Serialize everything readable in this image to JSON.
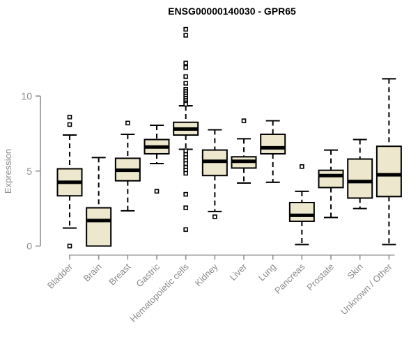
{
  "title": "ENSG00000140030 - GPR65",
  "chart_data": {
    "type": "boxplot",
    "title": "ENSG00000140030 - GPR65",
    "ylabel": "Expression",
    "xlabel": "",
    "yticks": [
      0,
      5,
      10
    ],
    "ylim": [
      0,
      10
    ],
    "grid": false,
    "legend": "none",
    "categories": [
      "Bladder",
      "Brain",
      "Breast",
      "Gastric",
      "Hematopoietic cells",
      "Kidney",
      "Liver",
      "Lung",
      "Pancreas",
      "Prostate",
      "Skin",
      "Unknown / Other"
    ],
    "series": [
      {
        "name": "Bladder",
        "whisker_low": 1.2,
        "q1": 3.35,
        "median": 4.25,
        "q3": 5.15,
        "whisker_high": 7.4,
        "outliers": [
          8.6,
          8.1,
          0.0
        ]
      },
      {
        "name": "Brain",
        "whisker_low": 0.0,
        "q1": 0.0,
        "median": 1.7,
        "q3": 2.55,
        "whisker_high": 5.9,
        "outliers": []
      },
      {
        "name": "Breast",
        "whisker_low": 2.35,
        "q1": 4.35,
        "median": 5.05,
        "q3": 5.85,
        "whisker_high": 7.45,
        "outliers": [
          8.2
        ]
      },
      {
        "name": "Gastric",
        "whisker_low": 5.5,
        "q1": 6.15,
        "median": 6.6,
        "q3": 7.1,
        "whisker_high": 8.05,
        "outliers": [
          3.65
        ]
      },
      {
        "name": "Hematopoietic cells",
        "whisker_low": 6.45,
        "q1": 7.4,
        "median": 7.8,
        "q3": 8.25,
        "whisker_high": 9.35,
        "outliers": [
          14.45,
          14.05,
          12.2,
          11.9,
          11.3,
          10.85,
          10.45,
          10.3,
          10.15,
          10.0,
          9.85,
          9.7,
          9.55,
          9.45,
          6.35,
          6.1,
          5.9,
          5.7,
          5.5,
          5.25,
          5.05,
          4.85,
          3.45,
          2.55,
          1.1
        ]
      },
      {
        "name": "Kidney",
        "whisker_low": 2.3,
        "q1": 4.7,
        "median": 5.65,
        "q3": 6.4,
        "whisker_high": 7.75,
        "outliers": [
          1.95
        ]
      },
      {
        "name": "Liver",
        "whisker_low": 4.2,
        "q1": 5.2,
        "median": 5.65,
        "q3": 5.95,
        "whisker_high": 7.15,
        "outliers": [
          8.35
        ]
      },
      {
        "name": "Lung",
        "whisker_low": 4.25,
        "q1": 6.15,
        "median": 6.55,
        "q3": 7.45,
        "whisker_high": 8.35,
        "outliers": []
      },
      {
        "name": "Pancreas",
        "whisker_low": 0.1,
        "q1": 1.65,
        "median": 2.05,
        "q3": 2.9,
        "whisker_high": 3.65,
        "outliers": [
          5.3
        ]
      },
      {
        "name": "Prostate",
        "whisker_low": 1.9,
        "q1": 3.9,
        "median": 4.7,
        "q3": 5.05,
        "whisker_high": 6.4,
        "outliers": []
      },
      {
        "name": "Skin",
        "whisker_low": 2.5,
        "q1": 3.2,
        "median": 4.3,
        "q3": 5.8,
        "whisker_high": 7.1,
        "outliers": []
      },
      {
        "name": "Unknown / Other",
        "whisker_low": 0.1,
        "q1": 3.3,
        "median": 4.75,
        "q3": 6.65,
        "whisker_high": 11.15,
        "outliers": []
      }
    ],
    "colors": {
      "box_fill": "#EDE7CD",
      "box_stroke": "#000000",
      "median": "#000000",
      "axis": "#8A8A8A",
      "tick_label": "#8A8A8A",
      "title": "#000000",
      "background": "#FFFFFF"
    }
  }
}
